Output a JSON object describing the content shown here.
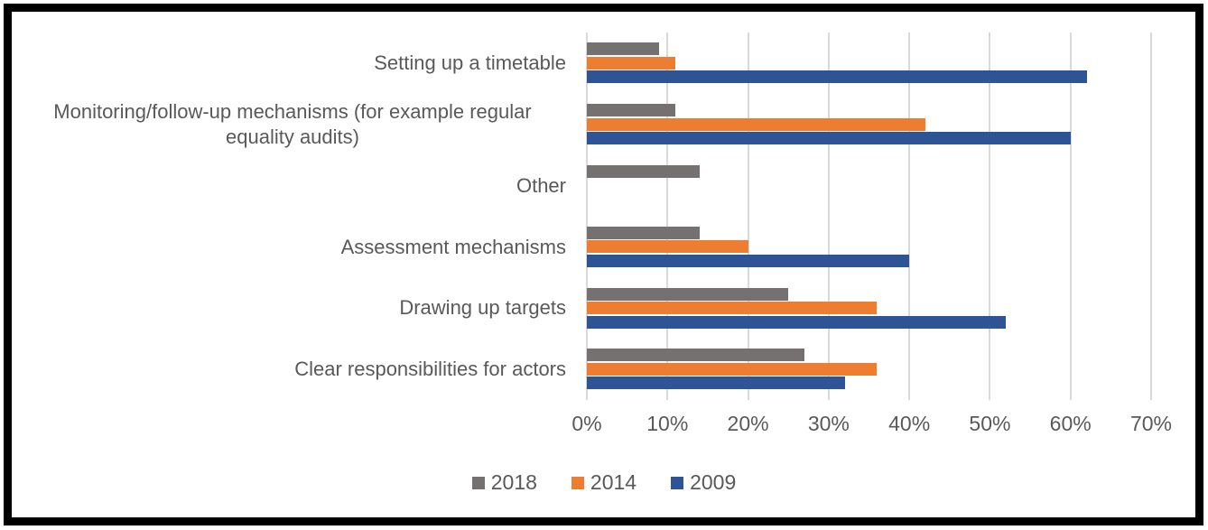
{
  "chart_data": {
    "type": "bar",
    "orientation": "horizontal",
    "title": "",
    "categories": [
      "Setting up a timetable",
      "Monitoring/follow-up mechanisms (for example regular equality audits)",
      "Other",
      "Assessment mechanisms",
      "Drawing up targets",
      "Clear responsibilities for actors"
    ],
    "series": [
      {
        "name": "2018",
        "color": "#767171",
        "values": [
          9,
          11,
          14,
          14,
          25,
          27
        ]
      },
      {
        "name": "2014",
        "color": "#ED7D31",
        "values": [
          11,
          42,
          0,
          20,
          36,
          36
        ]
      },
      {
        "name": "2009",
        "color": "#2F5496",
        "values": [
          62,
          60,
          0,
          40,
          52,
          32
        ]
      }
    ],
    "x_axis": {
      "min": 0,
      "max": 70,
      "unit": "%",
      "ticks": [
        "0%",
        "10%",
        "20%",
        "30%",
        "40%",
        "50%",
        "60%",
        "70%"
      ]
    },
    "legend": {
      "position": "bottom",
      "entries": [
        "2018",
        "2014",
        "2009"
      ]
    },
    "grid": true,
    "style": {
      "grid_color": "#d9d9d9",
      "text_color": "#595959",
      "border_color": "#000000",
      "background": "#ffffff"
    }
  }
}
